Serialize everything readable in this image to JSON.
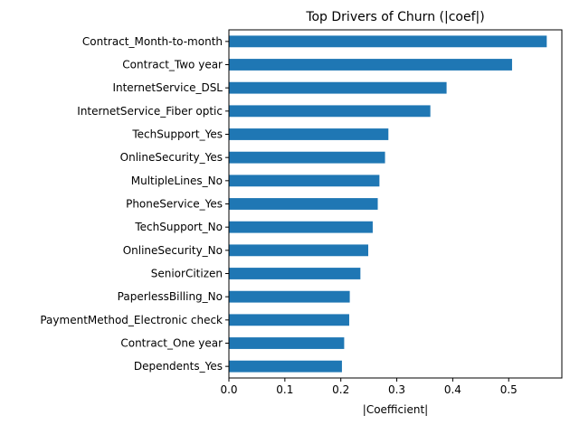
{
  "chart_data": {
    "type": "bar",
    "orientation": "horizontal",
    "title": "Top Drivers of Churn (|coef|)",
    "xlabel": "|Coefficient|",
    "ylabel": "",
    "xlim": [
      0,
      0.595
    ],
    "xticks": [
      0.0,
      0.1,
      0.2,
      0.3,
      0.4,
      0.5
    ],
    "xtick_labels": [
      "0.0",
      "0.1",
      "0.2",
      "0.3",
      "0.4",
      "0.5"
    ],
    "grid": false,
    "legend": "none",
    "bar_color": "#1f77b4",
    "categories": [
      "Contract_Month-to-month",
      "Contract_Two year",
      "InternetService_DSL",
      "InternetService_Fiber optic",
      "TechSupport_Yes",
      "OnlineSecurity_Yes",
      "MultipleLines_No",
      "PhoneService_Yes",
      "TechSupport_No",
      "OnlineSecurity_No",
      "SeniorCitizen",
      "PaperlessBilling_No",
      "PaymentMethod_Electronic check",
      "Contract_One year",
      "Dependents_Yes"
    ],
    "values": [
      0.568,
      0.506,
      0.389,
      0.36,
      0.285,
      0.279,
      0.269,
      0.266,
      0.257,
      0.249,
      0.235,
      0.216,
      0.215,
      0.206,
      0.202
    ]
  }
}
